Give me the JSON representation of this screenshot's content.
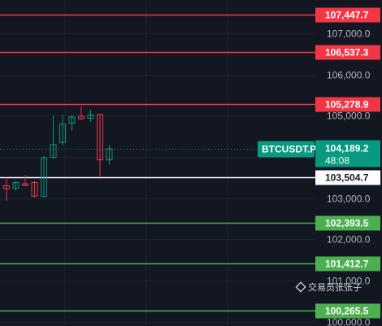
{
  "chart_data": {
    "type": "candlestick",
    "symbol": "BTCUSDT.P",
    "last_price": "104,189.2",
    "countdown": "48:08",
    "y_ticks": [
      100000,
      101000,
      102000,
      103000,
      104000,
      105000,
      106000,
      107000
    ],
    "y_tick_labels": [
      "100,000.0",
      "101,000.0",
      "102,000.0",
      "103,000.0",
      "104,000.0",
      "105,000.0",
      "106,000.0",
      "107,000.0"
    ],
    "ylim": [
      99897,
      107810
    ],
    "grid": true,
    "horizontal_levels": [
      {
        "value": 107447.7,
        "label": "107,447.7",
        "color": "#f23645",
        "label_text_color": "#ffffff"
      },
      {
        "value": 106537.3,
        "label": "106,537.3",
        "color": "#f23645",
        "label_text_color": "#ffffff"
      },
      {
        "value": 105278.9,
        "label": "105,278.9",
        "color": "#f23645",
        "label_text_color": "#ffffff"
      },
      {
        "value": 103504.7,
        "label": "103,504.7",
        "color": "#ffffff",
        "label_text_color": "#131722"
      },
      {
        "value": 102393.5,
        "label": "102,393.5",
        "color": "#4caf50",
        "label_text_color": "#ffffff"
      },
      {
        "value": 101412.7,
        "label": "101,412.7",
        "color": "#4caf50",
        "label_text_color": "#ffffff"
      },
      {
        "value": 100265.5,
        "label": "100,265.5",
        "color": "#4caf50",
        "label_text_color": "#ffffff"
      }
    ],
    "candles": [
      {
        "o": 103300,
        "h": 103500,
        "l": 102940,
        "c": 103230
      },
      {
        "o": 103240,
        "h": 103420,
        "l": 103180,
        "c": 103380
      },
      {
        "o": 103350,
        "h": 103560,
        "l": 103290,
        "c": 103310
      },
      {
        "o": 103380,
        "h": 103420,
        "l": 103020,
        "c": 103050
      },
      {
        "o": 103040,
        "h": 104020,
        "l": 103020,
        "c": 103980
      },
      {
        "o": 103990,
        "h": 105010,
        "l": 103960,
        "c": 104300
      },
      {
        "o": 104350,
        "h": 105020,
        "l": 104290,
        "c": 104800
      },
      {
        "o": 104820,
        "h": 105020,
        "l": 104640,
        "c": 104970
      },
      {
        "o": 104990,
        "h": 105230,
        "l": 104900,
        "c": 104930
      },
      {
        "o": 104940,
        "h": 105150,
        "l": 104850,
        "c": 105020
      },
      {
        "o": 105030,
        "h": 105040,
        "l": 103530,
        "c": 103930
      },
      {
        "o": 103930,
        "h": 104290,
        "l": 103810,
        "c": 104200
      }
    ],
    "colors": {
      "up": "#089981",
      "down": "#f23645",
      "background": "#131722",
      "grid": "#1f2330",
      "axis_text": "#b2b5be",
      "last_price_tag": "#089981"
    }
  },
  "watermark": {
    "text": "交易员张张子",
    "icon": "binance-square-icon"
  }
}
